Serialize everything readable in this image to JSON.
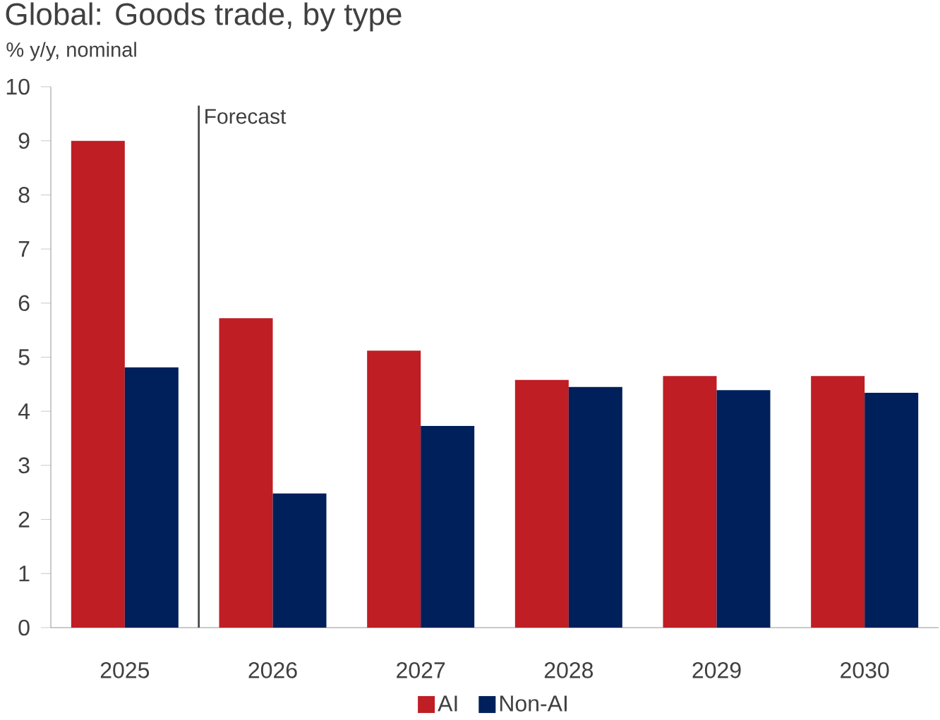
{
  "chart_data": {
    "type": "bar",
    "title": "Global: Goods trade, by type",
    "subtitle": "% y/y, nominal",
    "categories": [
      "2025",
      "2026",
      "2027",
      "2028",
      "2029",
      "2030"
    ],
    "series": [
      {
        "name": "AI",
        "color": "#be1e24",
        "values": [
          9.0,
          5.72,
          5.12,
          4.58,
          4.65,
          4.65
        ]
      },
      {
        "name": "Non-AI",
        "color": "#00205b",
        "values": [
          4.81,
          2.48,
          3.73,
          4.45,
          4.39,
          4.34
        ]
      }
    ],
    "ylim": [
      0,
      10
    ],
    "yticks": [
      0,
      1,
      2,
      3,
      4,
      5,
      6,
      7,
      8,
      9,
      10
    ],
    "annotations": [
      "Forecast"
    ],
    "grid": false,
    "legend": "bottom"
  }
}
